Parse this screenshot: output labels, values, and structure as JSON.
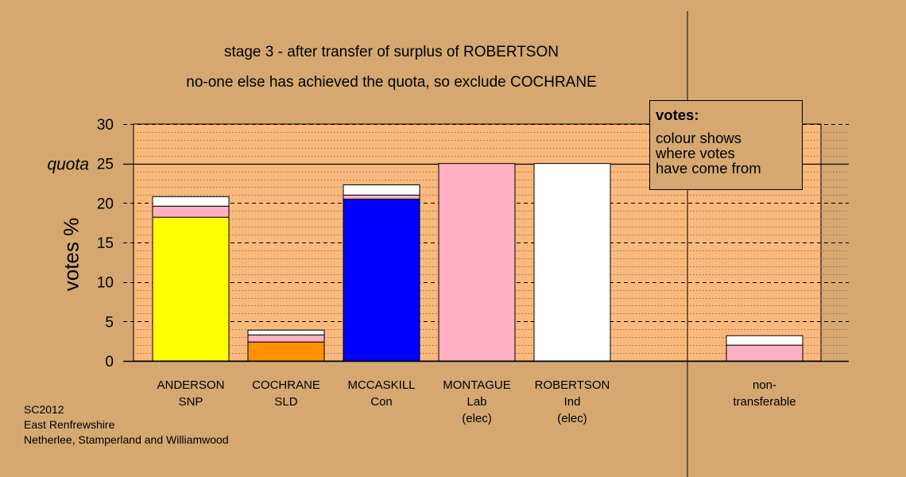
{
  "header": {
    "title": "stage 3 - after transfer of surplus of ROBERTSON",
    "subtitle": "no-one else has achieved the quota, so exclude COCHRANE"
  },
  "legend": {
    "title": "votes:",
    "lines": [
      "colour shows",
      "where votes",
      "have come from"
    ]
  },
  "footer": {
    "lines": [
      "SC2012",
      "East Renfrewshire",
      "Netherlee, Stamperland and Williamwood"
    ]
  },
  "colors": {
    "background": "#d5a872",
    "plot_fill": "#f9b97c",
    "SNP": "#ffff00",
    "SLD": "#ff9200",
    "Con": "#0000ff",
    "Lab": "#ffb1c1",
    "Ind": "#ffffff"
  },
  "chart_data": {
    "type": "bar",
    "stacked": true,
    "ylabel": "votes %",
    "ylim": [
      0,
      30
    ],
    "yticks": [
      "0",
      "5",
      "10",
      "15",
      "20",
      "25",
      "30"
    ],
    "quota": {
      "label": "quota",
      "value": 25
    },
    "grid": true,
    "categories": [
      {
        "lines": [
          "ANDERSON",
          "SNP"
        ]
      },
      {
        "lines": [
          "COCHRANE",
          "SLD"
        ]
      },
      {
        "lines": [
          "MCCASKILL",
          "Con"
        ]
      },
      {
        "lines": [
          "MONTAGUE",
          "Lab",
          "(elec)"
        ]
      },
      {
        "lines": [
          "ROBERTSON",
          "Ind",
          "(elec)"
        ]
      },
      {
        "lines": [
          "non-",
          "transferable"
        ]
      }
    ],
    "bars": [
      {
        "segments": [
          {
            "party": "SNP",
            "value": 18.2
          },
          {
            "party": "Lab",
            "value": 1.4
          },
          {
            "party": "Ind",
            "value": 1.2
          }
        ]
      },
      {
        "segments": [
          {
            "party": "SLD",
            "value": 2.4
          },
          {
            "party": "Lab",
            "value": 0.9
          },
          {
            "party": "Ind",
            "value": 0.6
          }
        ]
      },
      {
        "segments": [
          {
            "party": "Con",
            "value": 20.5
          },
          {
            "party": "Lab",
            "value": 0.5
          },
          {
            "party": "Ind",
            "value": 1.3
          }
        ]
      },
      {
        "segments": [
          {
            "party": "Lab",
            "value": 25
          }
        ]
      },
      {
        "segments": [
          {
            "party": "Ind",
            "value": 25
          }
        ]
      },
      {
        "segments": [
          {
            "party": "Lab",
            "value": 2.0
          },
          {
            "party": "Ind",
            "value": 1.2
          }
        ]
      }
    ]
  }
}
